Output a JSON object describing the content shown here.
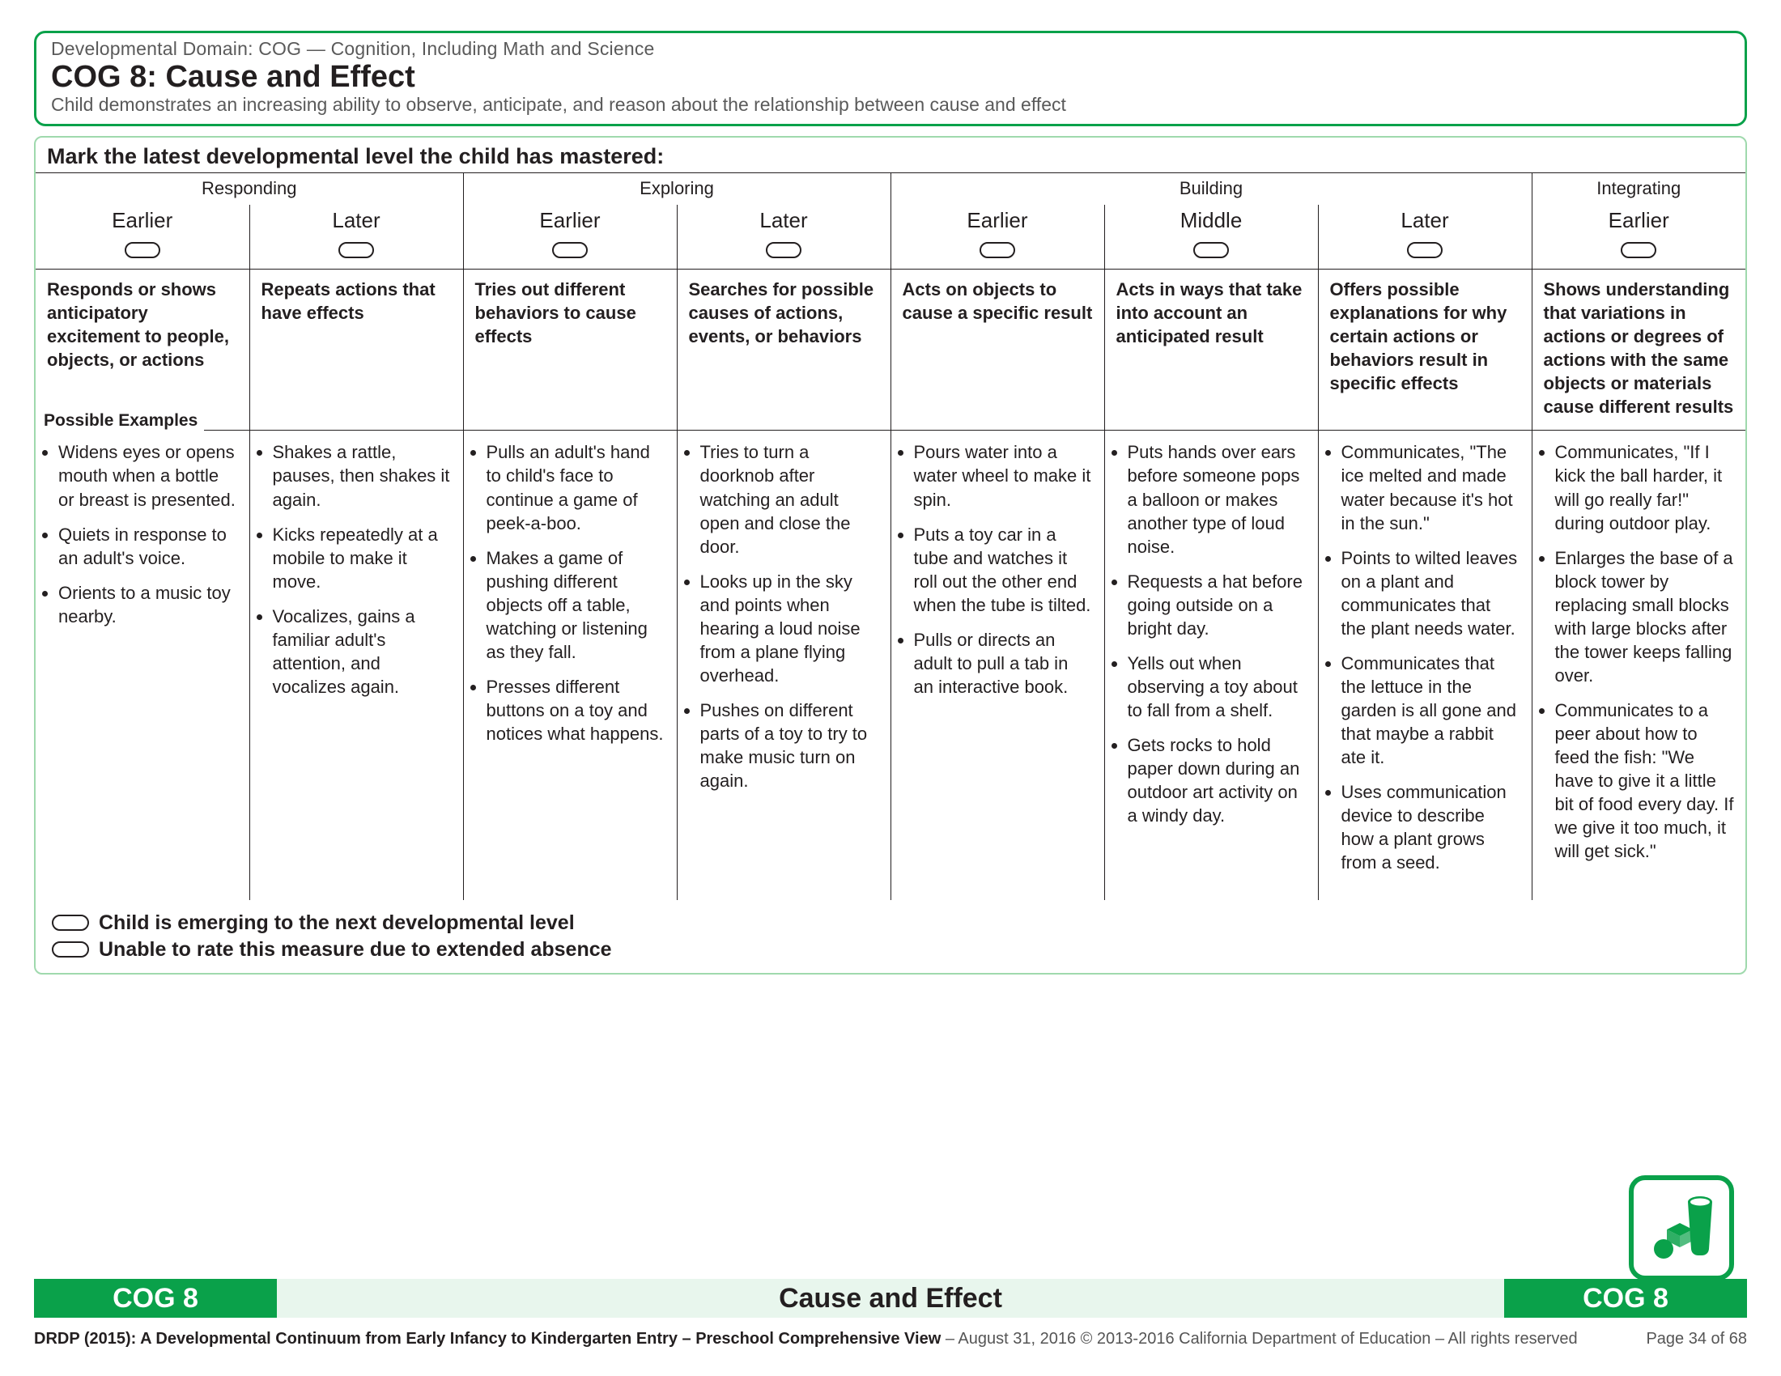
{
  "colors": {
    "brand_green": "#0aa14a",
    "pale_green": "#e8f6ed",
    "rule": "#231f20",
    "soft_border": "#9fd9ad"
  },
  "header": {
    "domain_line": "Developmental Domain: COG — Cognition, Including Math and Science",
    "measure_title": "COG 8: Cause and Effect",
    "definition": "Child demonstrates an increasing ability to observe, anticipate, and reason about the relationship between cause and effect"
  },
  "latest_line": "Mark the latest developmental level the child has mastered:",
  "stages": [
    {
      "name": "Responding",
      "span": 2
    },
    {
      "name": "Exploring",
      "span": 2
    },
    {
      "name": "Building",
      "span": 3
    },
    {
      "name": "Integrating",
      "span": 1
    }
  ],
  "columns": [
    {
      "sub": "Earlier",
      "descriptor": "Responds or shows anticipatory excitement to people, objects, or actions",
      "examples": [
        "Widens eyes or opens mouth when a bottle or breast is presented.",
        "Quiets in response to an adult's voice.",
        "Orients to a music toy nearby."
      ]
    },
    {
      "sub": "Later",
      "descriptor": "Repeats actions that have effects",
      "examples": [
        "Shakes a rattle, pauses, then shakes it again.",
        "Kicks repeatedly at a mobile to make it move.",
        "Vocalizes, gains a familiar adult's attention, and vocalizes again."
      ]
    },
    {
      "sub": "Earlier",
      "descriptor": "Tries out different behaviors to cause effects",
      "examples": [
        "Pulls an adult's hand to child's face to continue a game of peek-a-boo.",
        "Makes a game of pushing different objects off a table, watching or listening as they fall.",
        "Presses different buttons on a toy and notices what happens."
      ]
    },
    {
      "sub": "Later",
      "descriptor": "Searches for possible causes of actions, events, or behaviors",
      "examples": [
        "Tries to turn a doorknob after watching an adult open and close the door.",
        "Looks up in the sky and points when hearing a loud noise from a plane flying overhead.",
        "Pushes on different parts of a toy to try to make music turn on again."
      ]
    },
    {
      "sub": "Earlier",
      "descriptor": "Acts on objects to cause a specific result",
      "examples": [
        "Pours water into a water wheel to make it spin.",
        "Puts a toy car in a tube and watches it roll out the other end when the tube is tilted.",
        "Pulls or directs an adult to pull a tab in an interactive book."
      ]
    },
    {
      "sub": "Middle",
      "descriptor": "Acts in ways that take into account an anticipated result",
      "examples": [
        "Puts hands over ears before someone pops a balloon or makes another type of loud noise.",
        "Requests a hat before going outside on a bright day.",
        "Yells out when observing a toy about to fall from a shelf.",
        "Gets rocks to hold paper down during an outdoor art activity on a windy day."
      ]
    },
    {
      "sub": "Later",
      "descriptor": "Offers possible explanations for why certain actions or behaviors result in specific effects",
      "examples": [
        "Communicates, \"The ice melted and made water because it's hot in the sun.\"",
        "Points to wilted leaves on a plant and communicates that the plant needs water.",
        "Communicates that the lettuce in the garden is all gone and that maybe a rabbit ate it.",
        "Uses communication device to describe how a plant grows from a seed."
      ]
    },
    {
      "sub": "Earlier",
      "descriptor": "Shows understanding that variations in actions or degrees of actions with the same objects or materials cause different results",
      "examples": [
        "Communicates, \"If I kick the ball harder, it will go really far!\" during outdoor play.",
        "Enlarges the base of a block tower by replacing small blocks with large blocks after the tower keeps falling over.",
        "Communicates to a peer about how to feed the fish: \"We have to give it a little bit of food every day. If we give it too much, it will get sick.\""
      ]
    }
  ],
  "examples_label": "Possible Examples",
  "legend": {
    "emerging": "Child is emerging to the next developmental level",
    "unable": "Unable to rate this measure due to extended absence"
  },
  "footer_bar": {
    "left": "COG 8",
    "mid": "Cause and Effect",
    "right": "COG 8"
  },
  "footer_line": {
    "left_bold": "DRDP (2015): A Developmental Continuum from Early Infancy to Kindergarten Entry – Preschool Comprehensive View",
    "dash1": " – August 31, 2016      © 2013-2016 California Department of Education  –  All rights reserved",
    "right": "Page 34 of 68"
  }
}
